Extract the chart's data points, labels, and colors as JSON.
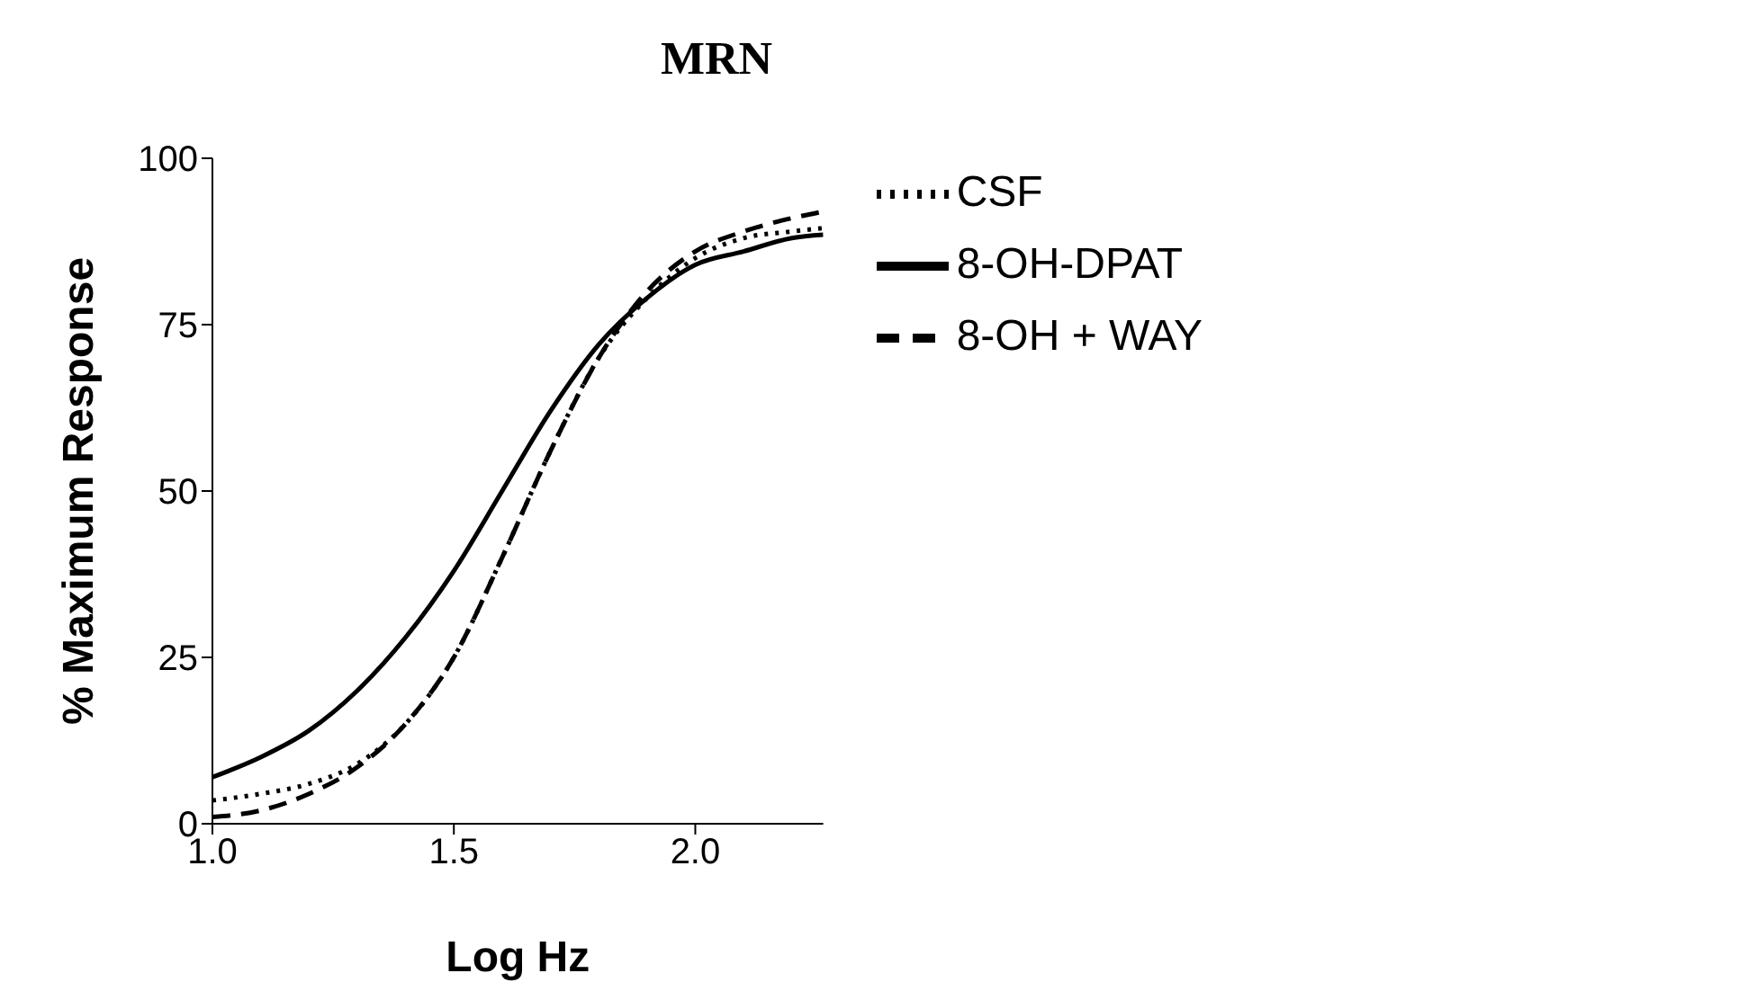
{
  "chart_data": {
    "type": "line",
    "title": "MRN",
    "xlabel": "Log Hz",
    "ylabel": "% Maximum Response",
    "xlim": [
      1.0,
      2.265
    ],
    "xticks": [
      {
        "value": 1.0,
        "label": "1.0"
      },
      {
        "value": 1.5,
        "label": "1.5"
      },
      {
        "value": 2.0,
        "label": "2.0"
      }
    ],
    "ylim": [
      0,
      100
    ],
    "yticks": [
      0,
      25,
      50,
      75,
      100
    ],
    "grid": false,
    "legend": "right",
    "marker": "none",
    "series": [
      {
        "name": "CSF",
        "color": "#000000",
        "line_style": "dotted",
        "x": [
          1.0,
          1.1,
          1.2,
          1.3,
          1.4,
          1.5,
          1.6,
          1.7,
          1.8,
          1.9,
          2.0,
          2.1,
          2.2,
          2.265
        ],
        "values": [
          3.5,
          4.5,
          6,
          9,
          15,
          25,
          40,
          56,
          70,
          79,
          85,
          88,
          89,
          89.5
        ]
      },
      {
        "name": "8-OH-DPAT",
        "color": "#000000",
        "line_style": "solid",
        "x": [
          1.0,
          1.1,
          1.2,
          1.3,
          1.4,
          1.5,
          1.6,
          1.7,
          1.8,
          1.9,
          2.0,
          2.1,
          2.2,
          2.265
        ],
        "values": [
          7,
          10,
          14,
          20,
          28,
          38,
          50,
          62,
          72,
          79,
          84,
          86,
          88,
          88.5
        ]
      },
      {
        "name": "8-OH + WAY",
        "color": "#000000",
        "line_style": "dashed",
        "x": [
          1.0,
          1.1,
          1.2,
          1.3,
          1.4,
          1.5,
          1.6,
          1.7,
          1.8,
          1.9,
          2.0,
          2.1,
          2.2,
          2.265
        ],
        "values": [
          1,
          2,
          4.5,
          8.5,
          15,
          25,
          40,
          56,
          70,
          80,
          86,
          89,
          91,
          92
        ]
      }
    ]
  }
}
